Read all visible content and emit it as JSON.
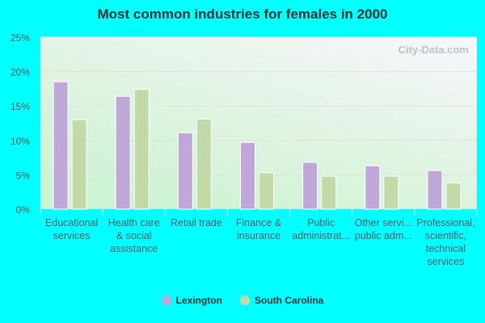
{
  "chart_data": {
    "type": "bar",
    "title": "Most common industries for females in 2000",
    "categories": [
      [
        "Educational",
        "services"
      ],
      [
        "Health care",
        "& social",
        "assistance"
      ],
      [
        "Retail trade"
      ],
      [
        "Finance &",
        "insurance"
      ],
      [
        "Public",
        "administrat..."
      ],
      [
        "Other servi...",
        "public adm..."
      ],
      [
        "Professional,",
        "scientific,",
        "technical",
        "services"
      ]
    ],
    "series": [
      {
        "name": "Lexington",
        "color": "#bfa8d8",
        "values": [
          18.5,
          16.4,
          11.1,
          9.7,
          6.8,
          6.3,
          5.6
        ]
      },
      {
        "name": "South Carolina",
        "color": "#c4d9a8",
        "values": [
          13.0,
          17.4,
          13.1,
          5.3,
          4.8,
          4.8,
          3.8
        ]
      }
    ],
    "ylim": [
      0,
      25
    ],
    "yticks": [
      "0%",
      "5%",
      "10%",
      "15%",
      "20%",
      "25%"
    ],
    "grid": true,
    "legend": "bottom",
    "watermark": "City-Data.com"
  }
}
